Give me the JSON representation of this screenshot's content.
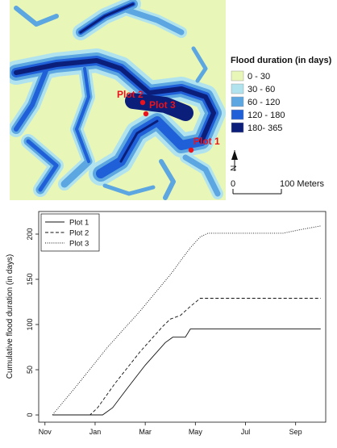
{
  "map": {
    "legend_title": "Flood duration (in days)",
    "legend_items": [
      {
        "label": "0 - 30",
        "color": "#e8f6b8"
      },
      {
        "label": "30 - 60",
        "color": "#b0e3ee"
      },
      {
        "label": "60 - 120",
        "color": "#5ca6e2"
      },
      {
        "label": "120 - 180",
        "color": "#1f5fd8"
      },
      {
        "label": "180- 365",
        "color": "#0b1f7a"
      }
    ],
    "plots": [
      {
        "label": "Plot 1"
      },
      {
        "label": "Plot 2"
      },
      {
        "label": "Plot 3"
      }
    ],
    "north_label": "N",
    "scale_start": "0",
    "scale_end": "100 Meters",
    "marker_color": "#e8131d",
    "background_color": "#e8f6b8"
  },
  "chart_data": {
    "type": "line",
    "title": "",
    "xlabel": "",
    "ylabel": "Cumulative flood duration (in days)",
    "x_ticks": [
      "Nov",
      "Jan",
      "Mar",
      "May",
      "Jul",
      "Sep"
    ],
    "y_ticks": [
      "0",
      "50",
      "100",
      "150",
      "200"
    ],
    "ylim": [
      -8,
      225
    ],
    "grid": false,
    "legend_position": "top-left",
    "x_unit": "month",
    "xlim": [
      -0.25,
      11.2
    ],
    "series": [
      {
        "name": "Plot 1",
        "dash": "solid",
        "points": [
          [
            0.3,
            0
          ],
          [
            2.3,
            0
          ],
          [
            2.7,
            8
          ],
          [
            3.3,
            30
          ],
          [
            4.0,
            55
          ],
          [
            4.8,
            80
          ],
          [
            5.1,
            86
          ],
          [
            5.6,
            86
          ],
          [
            5.8,
            95
          ],
          [
            11.0,
            95
          ]
        ]
      },
      {
        "name": "Plot 2",
        "dash": "dashed",
        "points": [
          [
            0.3,
            0
          ],
          [
            1.8,
            0
          ],
          [
            2.1,
            8
          ],
          [
            2.8,
            35
          ],
          [
            3.8,
            70
          ],
          [
            4.7,
            98
          ],
          [
            5.0,
            106
          ],
          [
            5.4,
            110
          ],
          [
            5.8,
            120
          ],
          [
            6.2,
            129
          ],
          [
            11.0,
            129
          ]
        ]
      },
      {
        "name": "Plot 3",
        "dash": "dotted",
        "points": [
          [
            0.3,
            0
          ],
          [
            1.2,
            30
          ],
          [
            2.5,
            75
          ],
          [
            3.8,
            115
          ],
          [
            5.0,
            155
          ],
          [
            5.8,
            185
          ],
          [
            6.2,
            197
          ],
          [
            6.5,
            201
          ],
          [
            9.5,
            201
          ],
          [
            10.2,
            205
          ],
          [
            11.0,
            209
          ]
        ]
      }
    ]
  }
}
